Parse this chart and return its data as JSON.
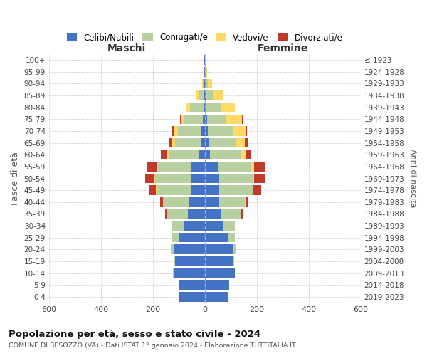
{
  "age_groups": [
    "0-4",
    "5-9",
    "10-14",
    "15-19",
    "20-24",
    "25-29",
    "30-34",
    "35-39",
    "40-44",
    "45-49",
    "50-54",
    "55-59",
    "60-64",
    "65-69",
    "70-74",
    "75-79",
    "80-84",
    "85-89",
    "90-94",
    "95-99",
    "100+"
  ],
  "birth_years": [
    "2019-2023",
    "2014-2018",
    "2009-2013",
    "2004-2008",
    "1999-2003",
    "1994-1998",
    "1989-1993",
    "1984-1988",
    "1979-1983",
    "1974-1978",
    "1969-1973",
    "1964-1968",
    "1959-1963",
    "1954-1958",
    "1949-1953",
    "1944-1948",
    "1939-1943",
    "1934-1938",
    "1929-1933",
    "1924-1928",
    "≤ 1923"
  ],
  "male": {
    "celibi": [
      100,
      100,
      120,
      115,
      120,
      100,
      80,
      65,
      60,
      55,
      55,
      50,
      20,
      15,
      12,
      8,
      6,
      4,
      2,
      2,
      1
    ],
    "coniugati": [
      0,
      0,
      2,
      4,
      10,
      25,
      45,
      80,
      100,
      130,
      135,
      130,
      120,
      100,
      90,
      70,
      50,
      20,
      5,
      2,
      0
    ],
    "vedovi": [
      0,
      0,
      0,
      0,
      0,
      0,
      0,
      0,
      1,
      2,
      3,
      5,
      8,
      10,
      15,
      15,
      15,
      10,
      4,
      2,
      0
    ],
    "divorziati": [
      0,
      0,
      0,
      0,
      0,
      1,
      2,
      8,
      12,
      25,
      35,
      35,
      20,
      10,
      8,
      3,
      0,
      0,
      0,
      0,
      0
    ]
  },
  "female": {
    "nubili": [
      90,
      95,
      115,
      110,
      110,
      90,
      70,
      60,
      55,
      55,
      55,
      50,
      20,
      15,
      12,
      8,
      6,
      5,
      4,
      2,
      1
    ],
    "coniugate": [
      0,
      0,
      2,
      4,
      10,
      25,
      45,
      80,
      100,
      130,
      130,
      130,
      120,
      105,
      95,
      75,
      55,
      30,
      8,
      2,
      0
    ],
    "vedove": [
      0,
      0,
      0,
      0,
      0,
      0,
      0,
      0,
      1,
      2,
      5,
      10,
      20,
      35,
      50,
      60,
      55,
      35,
      15,
      5,
      0
    ],
    "divorziate": [
      0,
      0,
      0,
      0,
      0,
      1,
      2,
      5,
      10,
      30,
      40,
      45,
      15,
      10,
      5,
      3,
      0,
      0,
      0,
      0,
      0
    ]
  },
  "colors": {
    "celibi": "#4472c4",
    "coniugati": "#b8cfa0",
    "vedovi": "#ffd966",
    "divorziati": "#c0392b"
  },
  "legend_labels": [
    "Celibi/Nubili",
    "Coniugati/e",
    "Vedovi/e",
    "Divorziati/e"
  ],
  "xlim": 600,
  "title": "Popolazione per età, sesso e stato civile - 2024",
  "subtitle": "COMUNE DI BESOZZO (VA) - Dati ISTAT 1° gennaio 2024 - Elaborazione TUTTITALIA.IT",
  "xlabel_left": "Maschi",
  "xlabel_right": "Femmine",
  "ylabel_left": "Fasce di età",
  "ylabel_right": "Anni di nascita",
  "bg_color": "#ffffff",
  "grid_color": "#cccccc"
}
